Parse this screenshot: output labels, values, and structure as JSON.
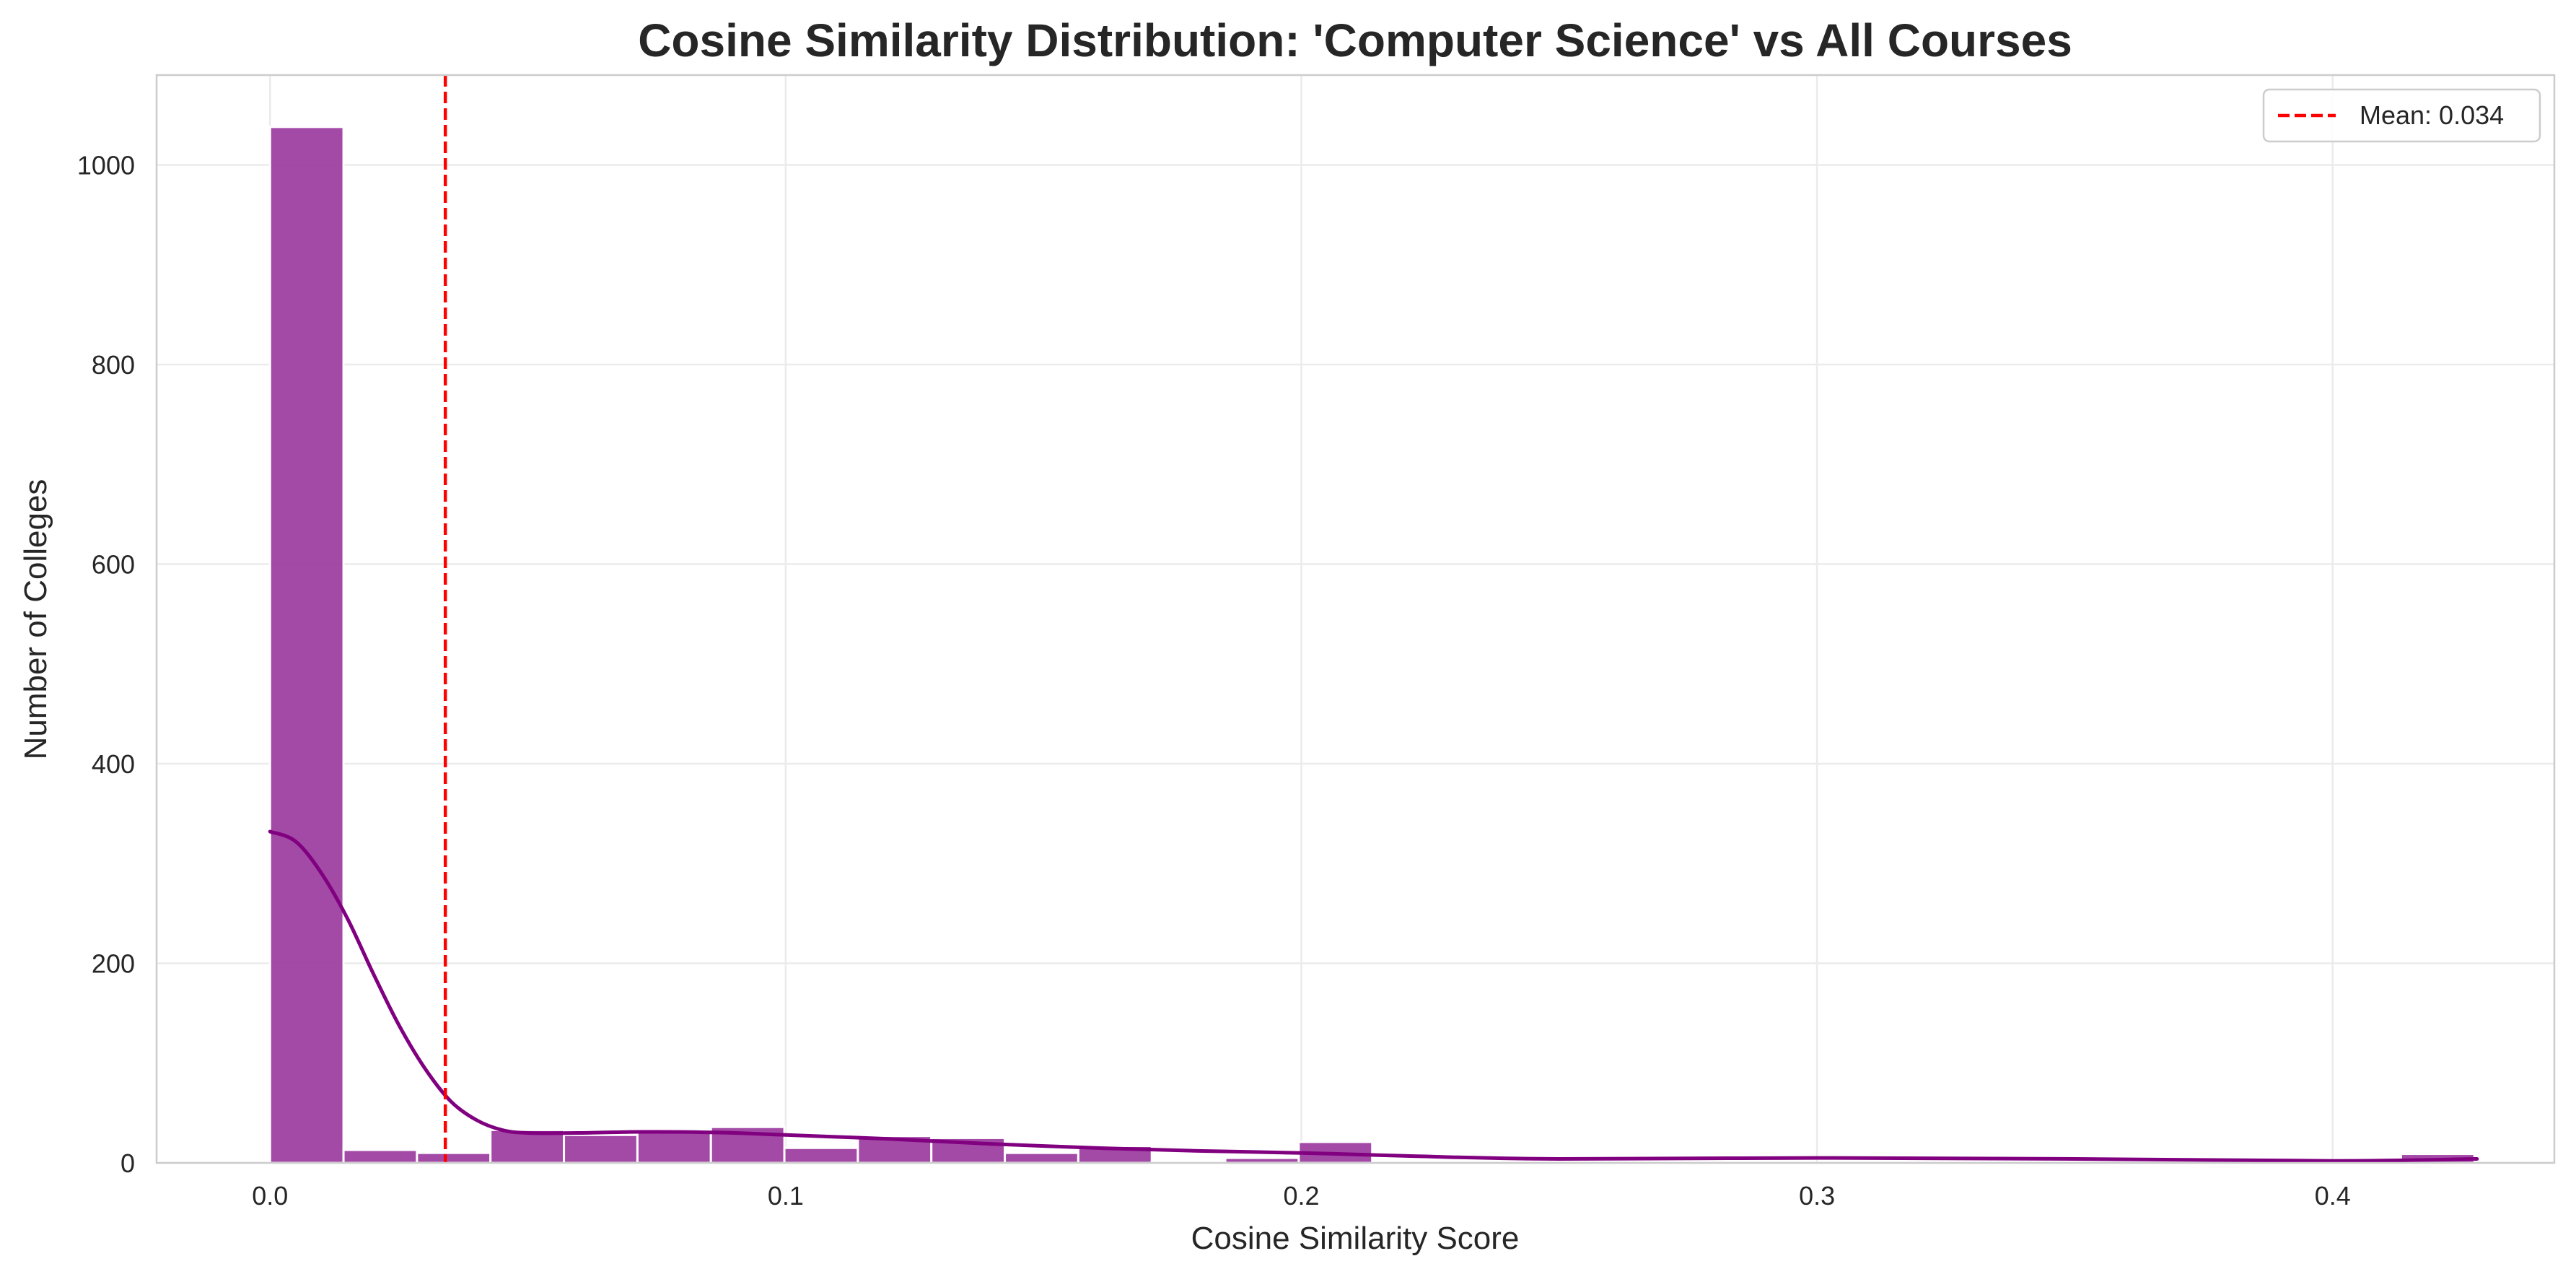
{
  "chart_data": {
    "type": "bar",
    "title": "Cosine Similarity Distribution: 'Computer Science' vs All Courses",
    "xlabel": "Cosine Similarity Score",
    "ylabel": "Number of Colleges",
    "xlim": [
      -0.022,
      0.443
    ],
    "ylim": [
      0,
      1090
    ],
    "xticks": [
      0.0,
      0.1,
      0.2,
      0.3,
      0.4
    ],
    "xtick_labels": [
      "0.0",
      "0.1",
      "0.2",
      "0.3",
      "0.4"
    ],
    "yticks": [
      0,
      200,
      400,
      600,
      800,
      1000
    ],
    "ytick_labels": [
      "0",
      "200",
      "400",
      "600",
      "800",
      "1000"
    ],
    "grid": true,
    "legend_position": "top-right",
    "bar_color": "#9b3a9e",
    "kde_color": "#800080",
    "mean_line_color": "#ff0000",
    "bins": {
      "edges": [
        0.0,
        0.01425,
        0.0285,
        0.04275,
        0.057,
        0.07125,
        0.0855,
        0.09975,
        0.114,
        0.12825,
        0.1425,
        0.15675,
        0.171,
        0.18525,
        0.1995,
        0.21375,
        0.228,
        0.24225,
        0.2565,
        0.27075,
        0.285,
        0.29925,
        0.3135,
        0.32775,
        0.342,
        0.35625,
        0.3705,
        0.38475,
        0.399,
        0.41325,
        0.4275
      ],
      "counts": [
        1038,
        13,
        10,
        33,
        28,
        33,
        36,
        15,
        27,
        25,
        10,
        17,
        2,
        5,
        21,
        0,
        0,
        0,
        0,
        0,
        0,
        0,
        0,
        0,
        0,
        0,
        0,
        0,
        0,
        9
      ]
    },
    "kde": {
      "name": "KDE",
      "x": [
        0.0,
        0.005,
        0.01,
        0.015,
        0.02,
        0.025,
        0.03,
        0.035,
        0.04,
        0.045,
        0.05,
        0.06,
        0.07,
        0.08,
        0.09,
        0.1,
        0.12,
        0.14,
        0.16,
        0.18,
        0.2,
        0.22,
        0.25,
        0.3,
        0.35,
        0.4,
        0.428
      ],
      "y": [
        332,
        322,
        290,
        245,
        190,
        138,
        95,
        62,
        43,
        33,
        30,
        30,
        31,
        31,
        30,
        28,
        24,
        19,
        15,
        12,
        10,
        7,
        4,
        5,
        4,
        2,
        4
      ]
    },
    "mean_line": {
      "x": 0.034,
      "label": "Mean: 0.034"
    }
  }
}
